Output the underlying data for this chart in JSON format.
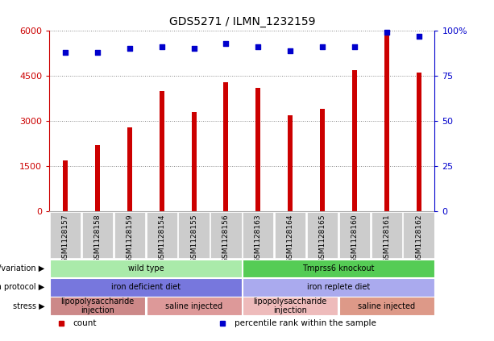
{
  "title": "GDS5271 / ILMN_1232159",
  "samples": [
    "GSM1128157",
    "GSM1128158",
    "GSM1128159",
    "GSM1128154",
    "GSM1128155",
    "GSM1128156",
    "GSM1128163",
    "GSM1128164",
    "GSM1128165",
    "GSM1128160",
    "GSM1128161",
    "GSM1128162"
  ],
  "counts": [
    1700,
    2200,
    2800,
    4000,
    3300,
    4300,
    4100,
    3200,
    3400,
    4700,
    5900,
    4600
  ],
  "percentiles": [
    88,
    88,
    90,
    91,
    90,
    93,
    91,
    89,
    91,
    91,
    99,
    97
  ],
  "bar_color": "#cc0000",
  "dot_color": "#0000cc",
  "ylim_left": [
    0,
    6000
  ],
  "ylim_right": [
    0,
    100
  ],
  "yticks_left": [
    0,
    1500,
    3000,
    4500,
    6000
  ],
  "yticks_right": [
    0,
    25,
    50,
    75,
    100
  ],
  "grid_color": "#888888",
  "bg_color": "#ffffff",
  "annotation_rows": [
    {
      "label": "genotype/variation",
      "cells": [
        {
          "text": "wild type",
          "span": 6,
          "color": "#aaeaaa"
        },
        {
          "text": "Tmprss6 knockout",
          "span": 6,
          "color": "#55cc55"
        }
      ]
    },
    {
      "label": "growth protocol",
      "cells": [
        {
          "text": "iron deficient diet",
          "span": 6,
          "color": "#7777dd"
        },
        {
          "text": "iron replete diet",
          "span": 6,
          "color": "#aaaaee"
        }
      ]
    },
    {
      "label": "stress",
      "cells": [
        {
          "text": "lipopolysaccharide\ninjection",
          "span": 3,
          "color": "#cc8888"
        },
        {
          "text": "saline injected",
          "span": 3,
          "color": "#dd9999"
        },
        {
          "text": "lipopolysaccharide\ninjection",
          "span": 3,
          "color": "#eebbbb"
        },
        {
          "text": "saline injected",
          "span": 3,
          "color": "#dd9988"
        }
      ]
    }
  ],
  "legend_items": [
    {
      "label": "count",
      "color": "#cc0000"
    },
    {
      "label": "percentile rank within the sample",
      "color": "#0000cc"
    }
  ],
  "left_tick_color": "#cc0000",
  "right_tick_color": "#0000cc",
  "xtick_bg": "#cccccc"
}
